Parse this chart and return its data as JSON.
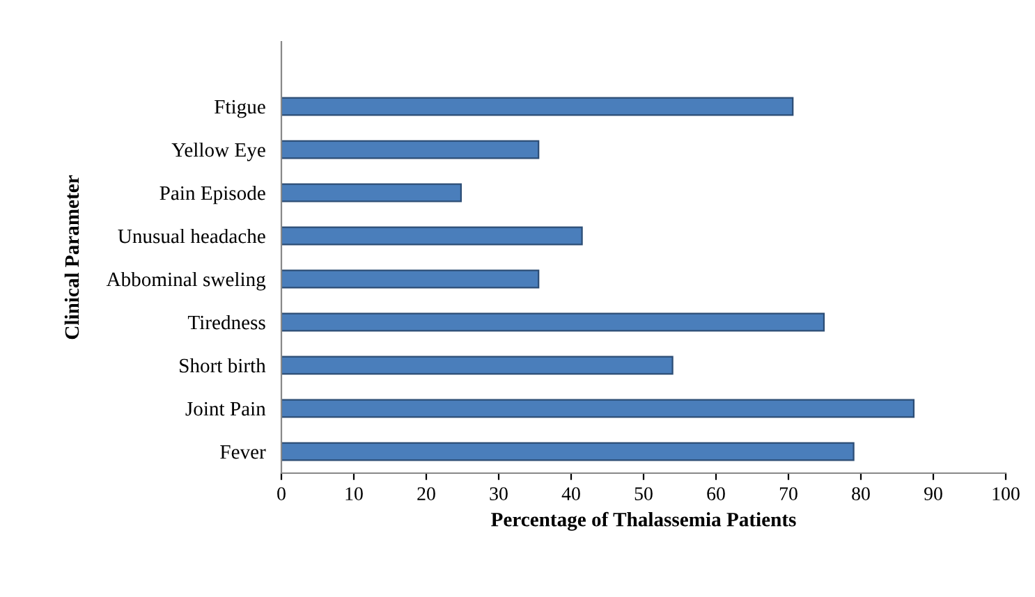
{
  "chart_data": {
    "type": "bar",
    "orientation": "horizontal",
    "xlabel": "Percentage of Thalassemia Patients",
    "ylabel": "Clinical Parameter",
    "categories": [
      "Ftigue",
      "Yellow Eye",
      "Pain Episode",
      "Unusual headache",
      "Abbominal sweling",
      "Tiredness",
      "Short birth",
      "Joint Pain",
      "Fever"
    ],
    "values": [
      70.6,
      35.5,
      24.8,
      41.5,
      35.5,
      74.9,
      54,
      87.3,
      79
    ],
    "color": "#4a7ebb",
    "xlim": [
      0,
      100
    ],
    "xticks": [
      0,
      10,
      20,
      30,
      40,
      50,
      60,
      70,
      80,
      90,
      100
    ],
    "grid": false,
    "legend": false
  }
}
